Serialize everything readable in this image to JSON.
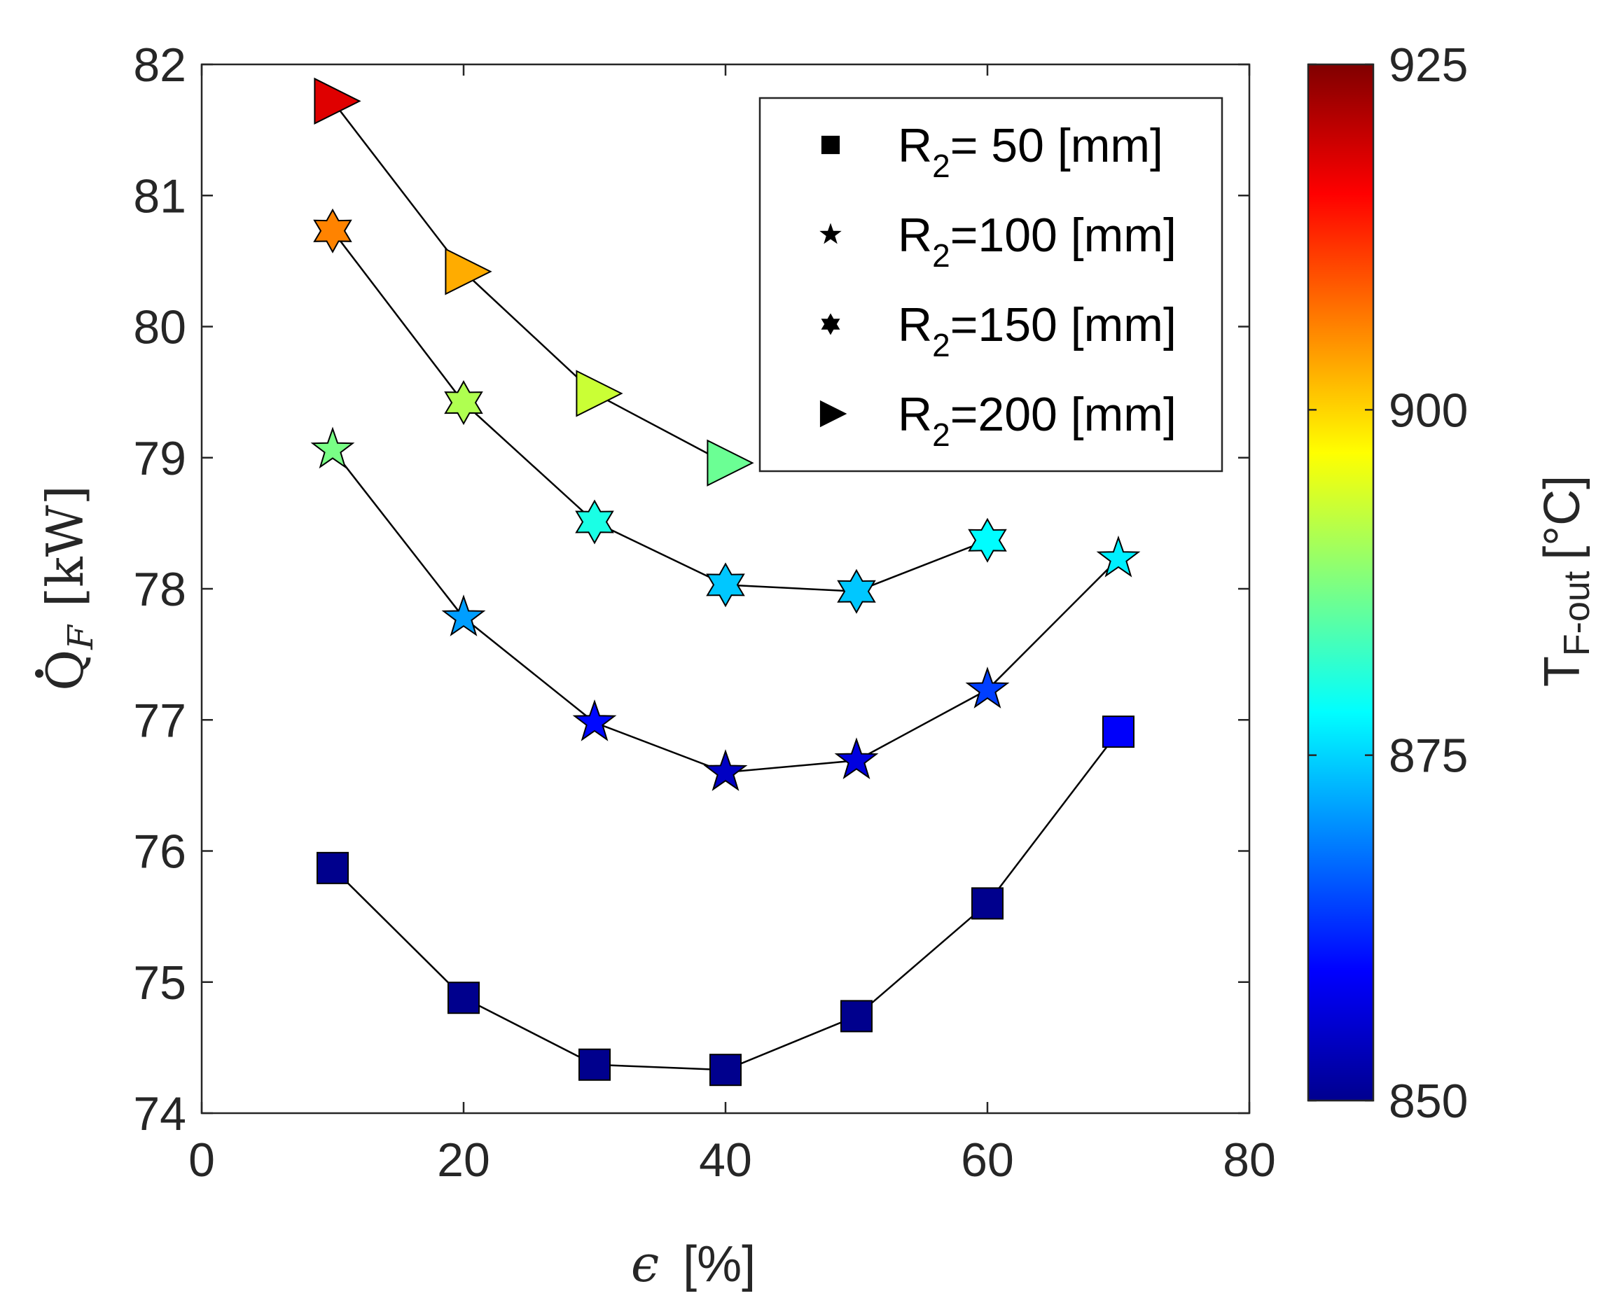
{
  "chart_data": {
    "type": "scatter",
    "xlabel": "[%]",
    "xlabel_symbol": "ϵ",
    "ylabel": "[kW]",
    "ylabel_symbol": "Q",
    "ylabel_subscript": "F",
    "xlim": [
      0,
      80
    ],
    "ylim": [
      74,
      82
    ],
    "x_ticks": [
      "0",
      "20",
      "40",
      "60",
      "80"
    ],
    "y_ticks": [
      "74",
      "75",
      "76",
      "77",
      "78",
      "79",
      "80",
      "81",
      "82"
    ],
    "colorbar": {
      "label": "T",
      "label_subscript": "F-out",
      "label_unit": "[°C]",
      "range": [
        850,
        925
      ],
      "ticks": [
        "850",
        "875",
        "900",
        "925"
      ],
      "colormap": "jet"
    },
    "legend_position": "top-right",
    "series": [
      {
        "name_base": "R",
        "name_sub": "2",
        "name_rest": "= 50 [mm]",
        "marker": "square",
        "x": [
          10,
          20,
          30,
          40,
          50,
          60,
          70
        ],
        "y": [
          75.87,
          74.88,
          74.37,
          74.33,
          74.74,
          75.6,
          76.91
        ],
        "color_values": [
          851,
          851,
          851,
          851,
          851,
          851,
          859
        ]
      },
      {
        "name_base": "R",
        "name_sub": "2",
        "name_rest": "=100 [mm]",
        "marker": "star5",
        "x": [
          10,
          20,
          30,
          40,
          50,
          60,
          70
        ],
        "y": [
          79.06,
          77.78,
          76.98,
          76.6,
          76.69,
          77.23,
          78.23
        ],
        "color_values": [
          887,
          871,
          860,
          855,
          857,
          864,
          877
        ]
      },
      {
        "name_base": "R",
        "name_sub": "2",
        "name_rest": "=150 [mm]",
        "marker": "star6",
        "x": [
          10,
          20,
          30,
          40,
          50,
          60
        ],
        "y": [
          80.73,
          79.42,
          78.51,
          78.03,
          77.98,
          78.37
        ],
        "color_values": [
          906,
          891,
          880,
          874,
          874,
          878
        ]
      },
      {
        "name_base": "R",
        "name_sub": "2",
        "name_rest": "=200 [mm]",
        "marker": "triangle-right",
        "x": [
          10,
          20,
          30,
          40
        ],
        "y": [
          81.72,
          80.42,
          79.49,
          78.96
        ],
        "color_values": [
          918,
          903,
          893,
          886
        ]
      }
    ]
  }
}
